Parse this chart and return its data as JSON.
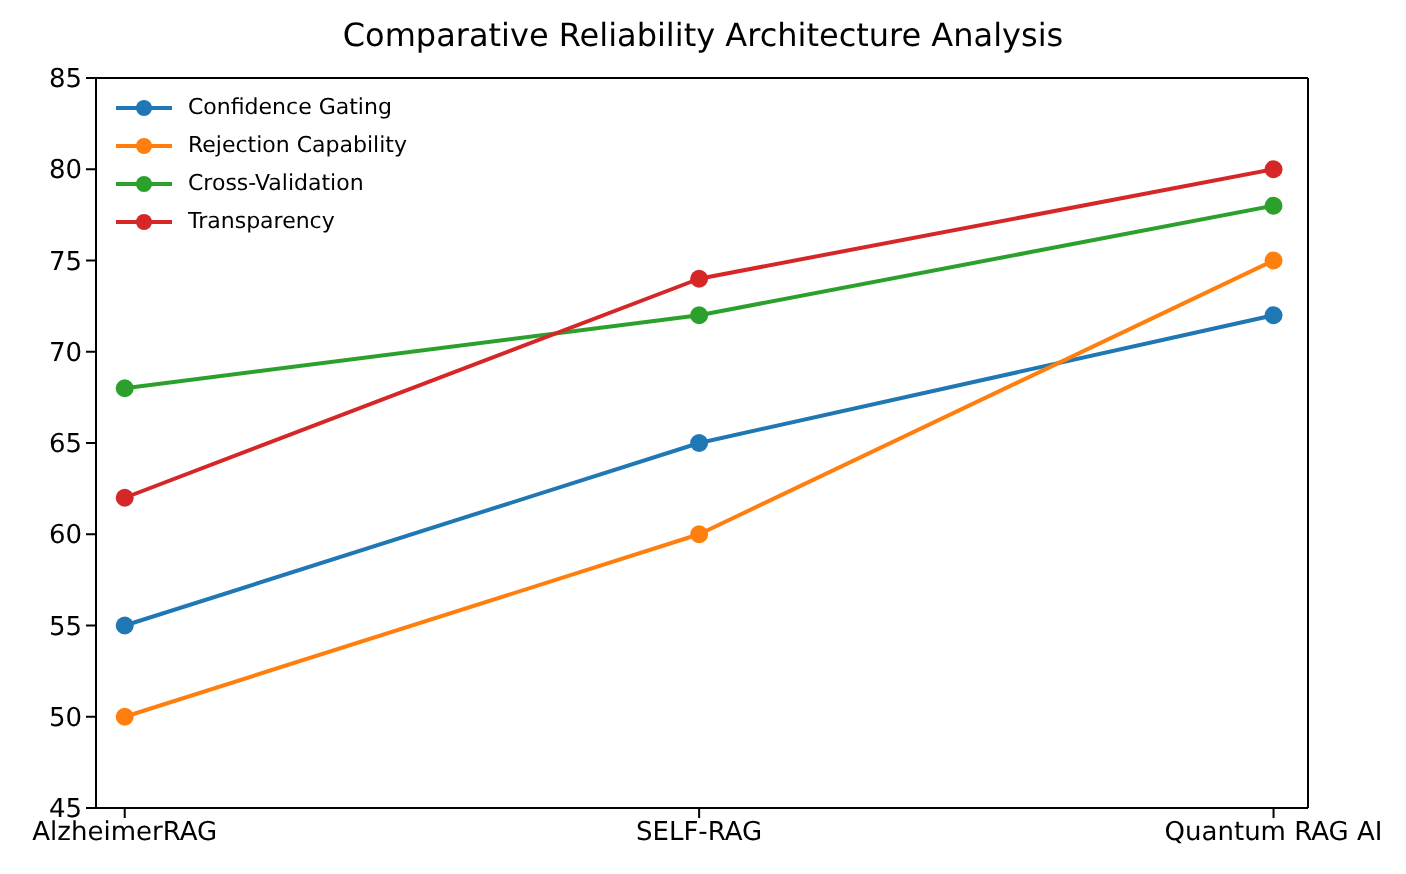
{
  "chart_data": {
    "type": "line",
    "title": "Comparative Reliability Architecture Analysis",
    "categories": [
      "AlzheimerRAG",
      "SELF-RAG",
      "Quantum RAG AI"
    ],
    "series": [
      {
        "name": "Confidence Gating",
        "color": "#1f77b4",
        "values": [
          55,
          65,
          72
        ]
      },
      {
        "name": "Rejection Capability",
        "color": "#ff7f0e",
        "values": [
          50,
          60,
          75
        ]
      },
      {
        "name": "Cross-Validation",
        "color": "#2ca02c",
        "values": [
          68,
          72,
          78
        ]
      },
      {
        "name": "Transparency",
        "color": "#d62728",
        "values": [
          62,
          74,
          80
        ]
      }
    ],
    "ylim": [
      45,
      85
    ],
    "yticks": [
      45,
      50,
      55,
      60,
      65,
      70,
      75,
      80,
      85
    ],
    "grid": false,
    "legend": "top left",
    "marker": "circle",
    "line_style": "solid"
  }
}
